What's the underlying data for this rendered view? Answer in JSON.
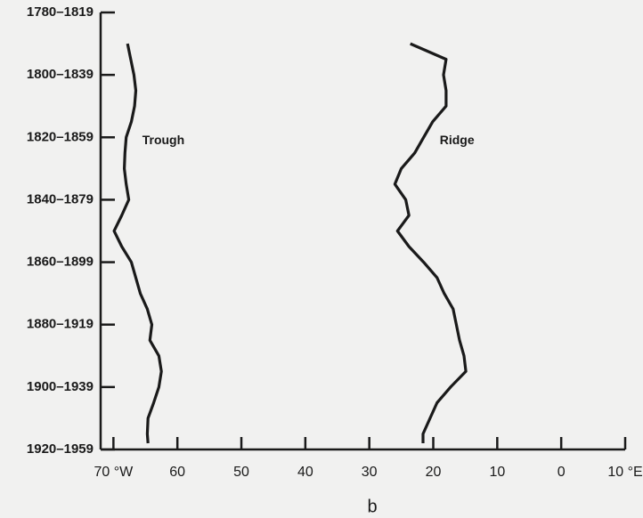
{
  "chart_data": {
    "type": "line",
    "orientation": "vertical",
    "subtitle": "b",
    "annotations": [
      {
        "text": "Trough",
        "series": 0
      },
      {
        "text": "Ridge",
        "series": 1
      }
    ],
    "y": [
      1790,
      1795,
      1800,
      1805,
      1810,
      1815,
      1820,
      1825,
      1830,
      1835,
      1840,
      1845,
      1850,
      1855,
      1860,
      1865,
      1870,
      1875,
      1880,
      1885,
      1890,
      1895,
      1900,
      1905,
      1910,
      1915,
      1918
    ],
    "series": [
      {
        "name": "Trough",
        "color": "#1a1a1a",
        "values": [
          67.8,
          67.3,
          66.8,
          66.5,
          66.7,
          67.2,
          68.0,
          68.2,
          68.3,
          68.0,
          67.6,
          68.7,
          69.9,
          68.7,
          67.2,
          66.5,
          65.8,
          64.7,
          64.0,
          64.3,
          62.9,
          62.5,
          62.9,
          63.7,
          64.6,
          64.7,
          64.6
        ]
      },
      {
        "name": "Ridge",
        "color": "#1a1a1a",
        "values": [
          23.6,
          18.0,
          18.4,
          18.0,
          18.0,
          20.1,
          21.5,
          22.9,
          25.0,
          26.0,
          24.3,
          23.8,
          25.6,
          23.8,
          21.5,
          19.4,
          18.3,
          16.9,
          16.4,
          15.9,
          15.2,
          14.9,
          17.3,
          19.4,
          20.5,
          21.6,
          21.6
        ]
      }
    ],
    "xlim": [
      72,
      -10
    ],
    "xticks": [
      {
        "value": 70,
        "label": "70 °W"
      },
      60,
      50,
      40,
      30,
      20,
      10,
      0,
      {
        "value": -10,
        "label": "10 °E"
      }
    ],
    "ylim": [
      1780,
      1920
    ],
    "yticks": [
      {
        "value": 1780,
        "label": "1780–1819"
      },
      {
        "value": 1800,
        "label": "1800–1839"
      },
      {
        "value": 1820,
        "label": "1820–1859"
      },
      {
        "value": 1840,
        "label": "1840–1879"
      },
      {
        "value": 1860,
        "label": "1860–1899"
      },
      {
        "value": 1880,
        "label": "1880–1919"
      },
      {
        "value": 1900,
        "label": "1900–1939"
      },
      {
        "value": 1920,
        "label": "1920–1959"
      }
    ],
    "grid": false
  }
}
